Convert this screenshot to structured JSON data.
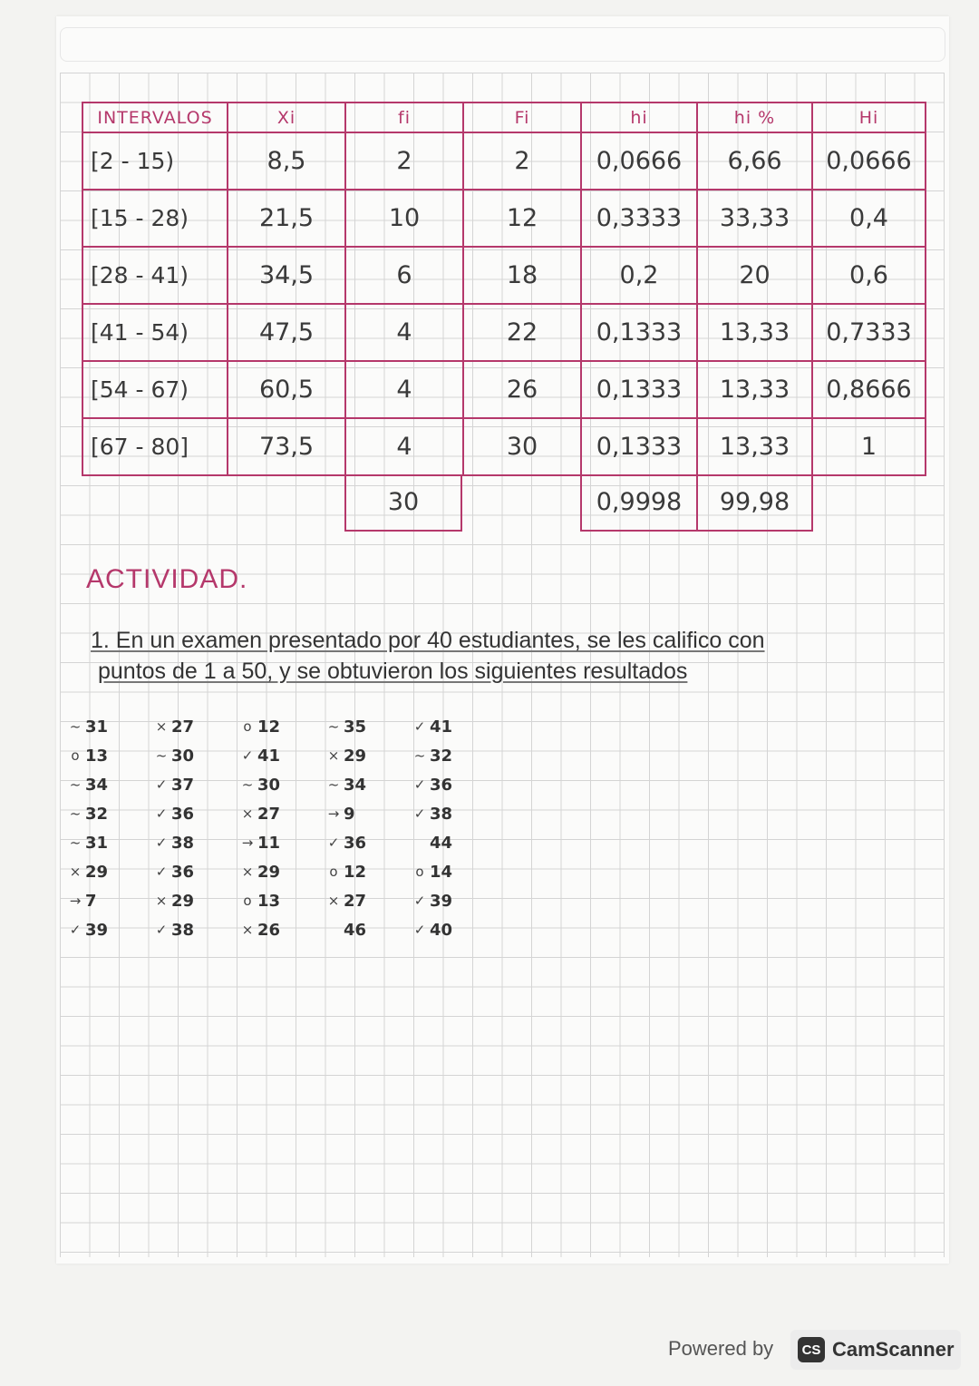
{
  "colors": {
    "pink": "#b5386b",
    "ink": "#3a3a3a"
  },
  "table": {
    "headers": [
      "INTERVALOS",
      "Xi",
      "fi",
      "Fi",
      "hi",
      "hi %",
      "Hi"
    ],
    "rows": [
      [
        "[2 - 15)",
        "8,5",
        "2",
        "2",
        "0,0666",
        "6,66",
        "0,0666"
      ],
      [
        "[15 - 28)",
        "21,5",
        "10",
        "12",
        "0,3333",
        "33,33",
        "0,4"
      ],
      [
        "[28 - 41)",
        "34,5",
        "6",
        "18",
        "0,2",
        "20",
        "0,6"
      ],
      [
        "[41 - 54)",
        "47,5",
        "4",
        "22",
        "0,1333",
        "13,33",
        "0,7333"
      ],
      [
        "[54 - 67)",
        "60,5",
        "4",
        "26",
        "0,1333",
        "13,33",
        "0,8666"
      ],
      [
        "[67 - 80]",
        "73,5",
        "4",
        "30",
        "0,1333",
        "13,33",
        "1"
      ]
    ],
    "totals": {
      "fi": "30",
      "hi": "0,9998",
      "hi_pct": "99,98"
    }
  },
  "activity": {
    "title": "ACTIVIDAD.",
    "line1": "1. En un examen presentado por 40 estudiantes, se les califico con",
    "line2": "puntos de 1 a 50, y se obtuvieron los siguientes resultados"
  },
  "results": [
    [
      {
        "mark": "~",
        "value": "31"
      },
      {
        "mark": "×",
        "value": "27"
      },
      {
        "mark": "o",
        "value": "12"
      },
      {
        "mark": "~",
        "value": "35"
      },
      {
        "mark": "✓",
        "value": "41"
      }
    ],
    [
      {
        "mark": "o",
        "value": "13"
      },
      {
        "mark": "~",
        "value": "30"
      },
      {
        "mark": "✓",
        "value": "41"
      },
      {
        "mark": "×",
        "value": "29"
      },
      {
        "mark": "~",
        "value": "32"
      }
    ],
    [
      {
        "mark": "~",
        "value": "34"
      },
      {
        "mark": "✓",
        "value": "37"
      },
      {
        "mark": "~",
        "value": "30"
      },
      {
        "mark": "~",
        "value": "34"
      },
      {
        "mark": "✓",
        "value": "36"
      }
    ],
    [
      {
        "mark": "~",
        "value": "32"
      },
      {
        "mark": "✓",
        "value": "36"
      },
      {
        "mark": "×",
        "value": "27"
      },
      {
        "mark": "→",
        "value": "9"
      },
      {
        "mark": "✓",
        "value": "38"
      }
    ],
    [
      {
        "mark": "~",
        "value": "31"
      },
      {
        "mark": "✓",
        "value": "38"
      },
      {
        "mark": "→",
        "value": "11"
      },
      {
        "mark": "✓",
        "value": "36"
      },
      {
        "mark": "",
        "value": "44"
      }
    ],
    [
      {
        "mark": "×",
        "value": "29"
      },
      {
        "mark": "✓",
        "value": "36"
      },
      {
        "mark": "×",
        "value": "29"
      },
      {
        "mark": "o",
        "value": "12"
      },
      {
        "mark": "o",
        "value": "14"
      }
    ],
    [
      {
        "mark": "→",
        "value": "7"
      },
      {
        "mark": "×",
        "value": "29"
      },
      {
        "mark": "o",
        "value": "13"
      },
      {
        "mark": "×",
        "value": "27"
      },
      {
        "mark": "✓",
        "value": "39"
      }
    ],
    [
      {
        "mark": "✓",
        "value": "39"
      },
      {
        "mark": "✓",
        "value": "38"
      },
      {
        "mark": "×",
        "value": "26"
      },
      {
        "mark": "",
        "value": "46"
      },
      {
        "mark": "✓",
        "value": "40"
      }
    ]
  ],
  "watermark": {
    "powered_by": "Powered by",
    "logo_mark": "CS",
    "brand": "CamScanner"
  }
}
